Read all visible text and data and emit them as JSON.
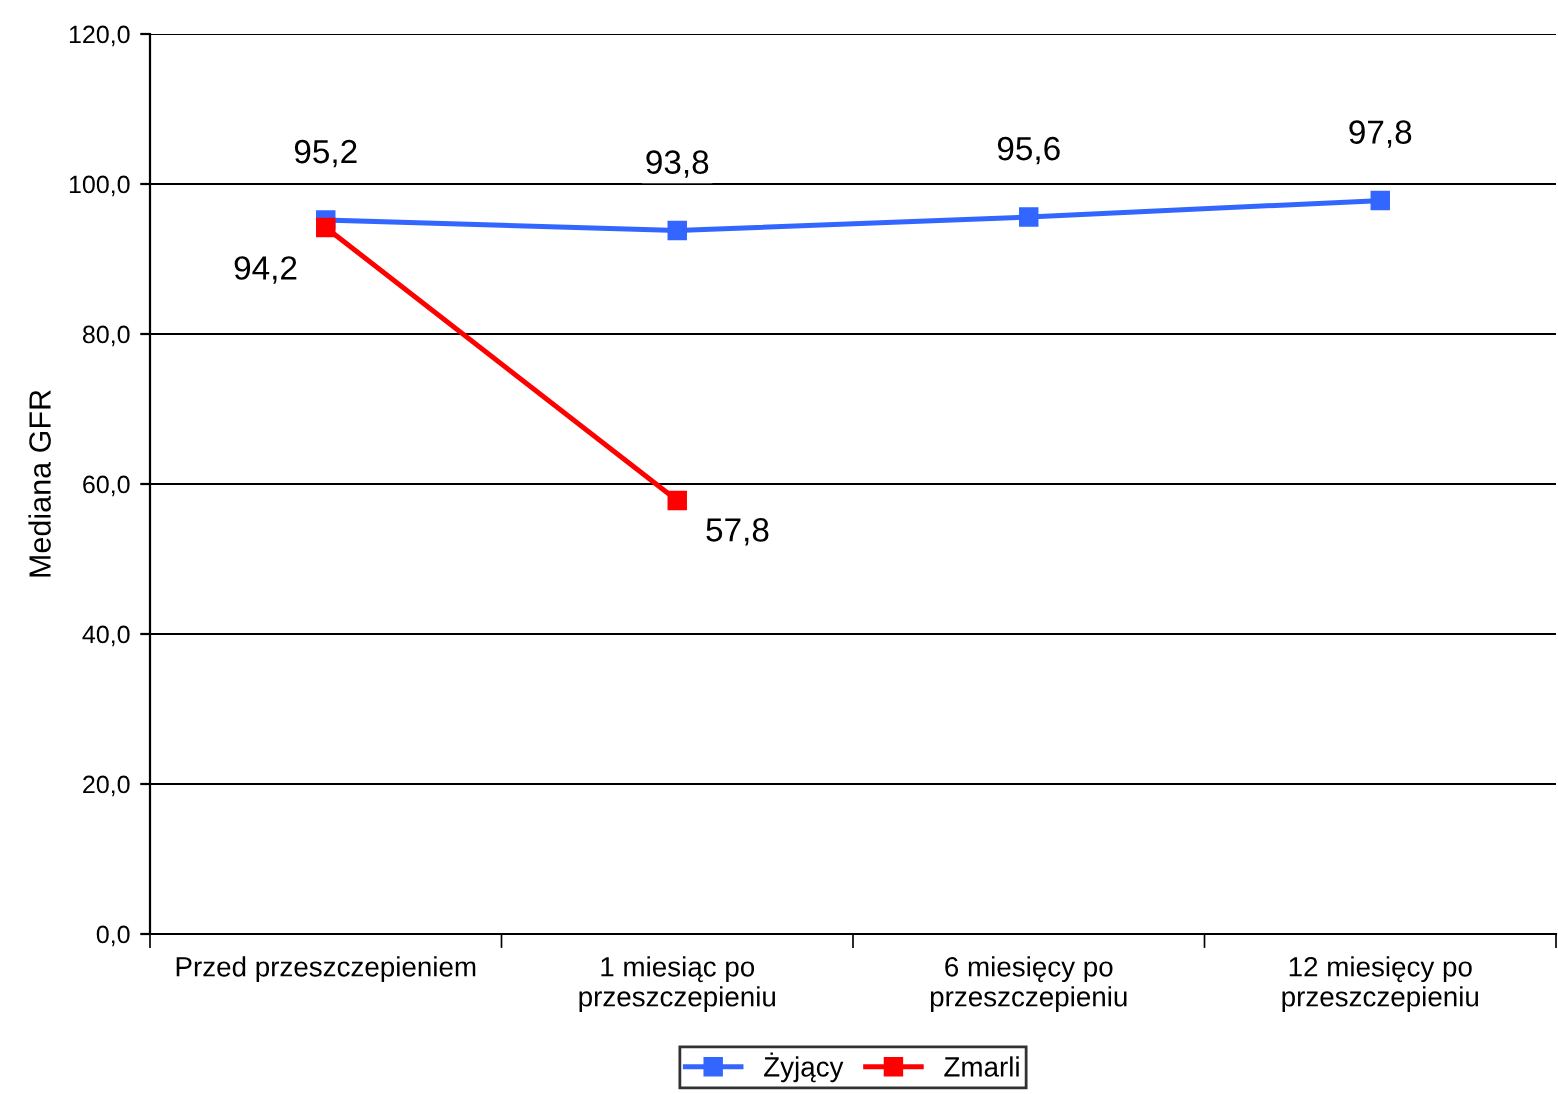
{
  "chart_data": {
    "type": "line",
    "ylabel": "Mediana GFR",
    "categories": [
      "Przed przeszczepieniem",
      "1 miesiąc po\nprzeszczepieniu",
      "6 miesięcy po\nprzeszczepieniu",
      "12 miesięcy po\nprzeszczepieniu"
    ],
    "series": [
      {
        "name": "Żyjący",
        "color": "#3366ff",
        "values": [
          95.2,
          93.8,
          95.6,
          97.8
        ],
        "value_labels": [
          "95,2",
          "93,8",
          "95,6",
          "97,8"
        ]
      },
      {
        "name": "Zmarli",
        "color": "#ff0000",
        "values": [
          94.2,
          57.8,
          null,
          null
        ],
        "value_labels": [
          "94,2",
          "57,8",
          null,
          null
        ]
      }
    ],
    "ylim": [
      0,
      120
    ],
    "yticks": [
      {
        "value": 0,
        "label": "0,0"
      },
      {
        "value": 20,
        "label": "20,0"
      },
      {
        "value": 40,
        "label": "40,0"
      },
      {
        "value": 60,
        "label": "60,0"
      },
      {
        "value": 80,
        "label": "80,0"
      },
      {
        "value": 100,
        "label": "100,0"
      },
      {
        "value": 120,
        "label": "120,0"
      }
    ],
    "grid": "y",
    "legend": "bottom",
    "marker": "square",
    "line_style": "solid"
  }
}
